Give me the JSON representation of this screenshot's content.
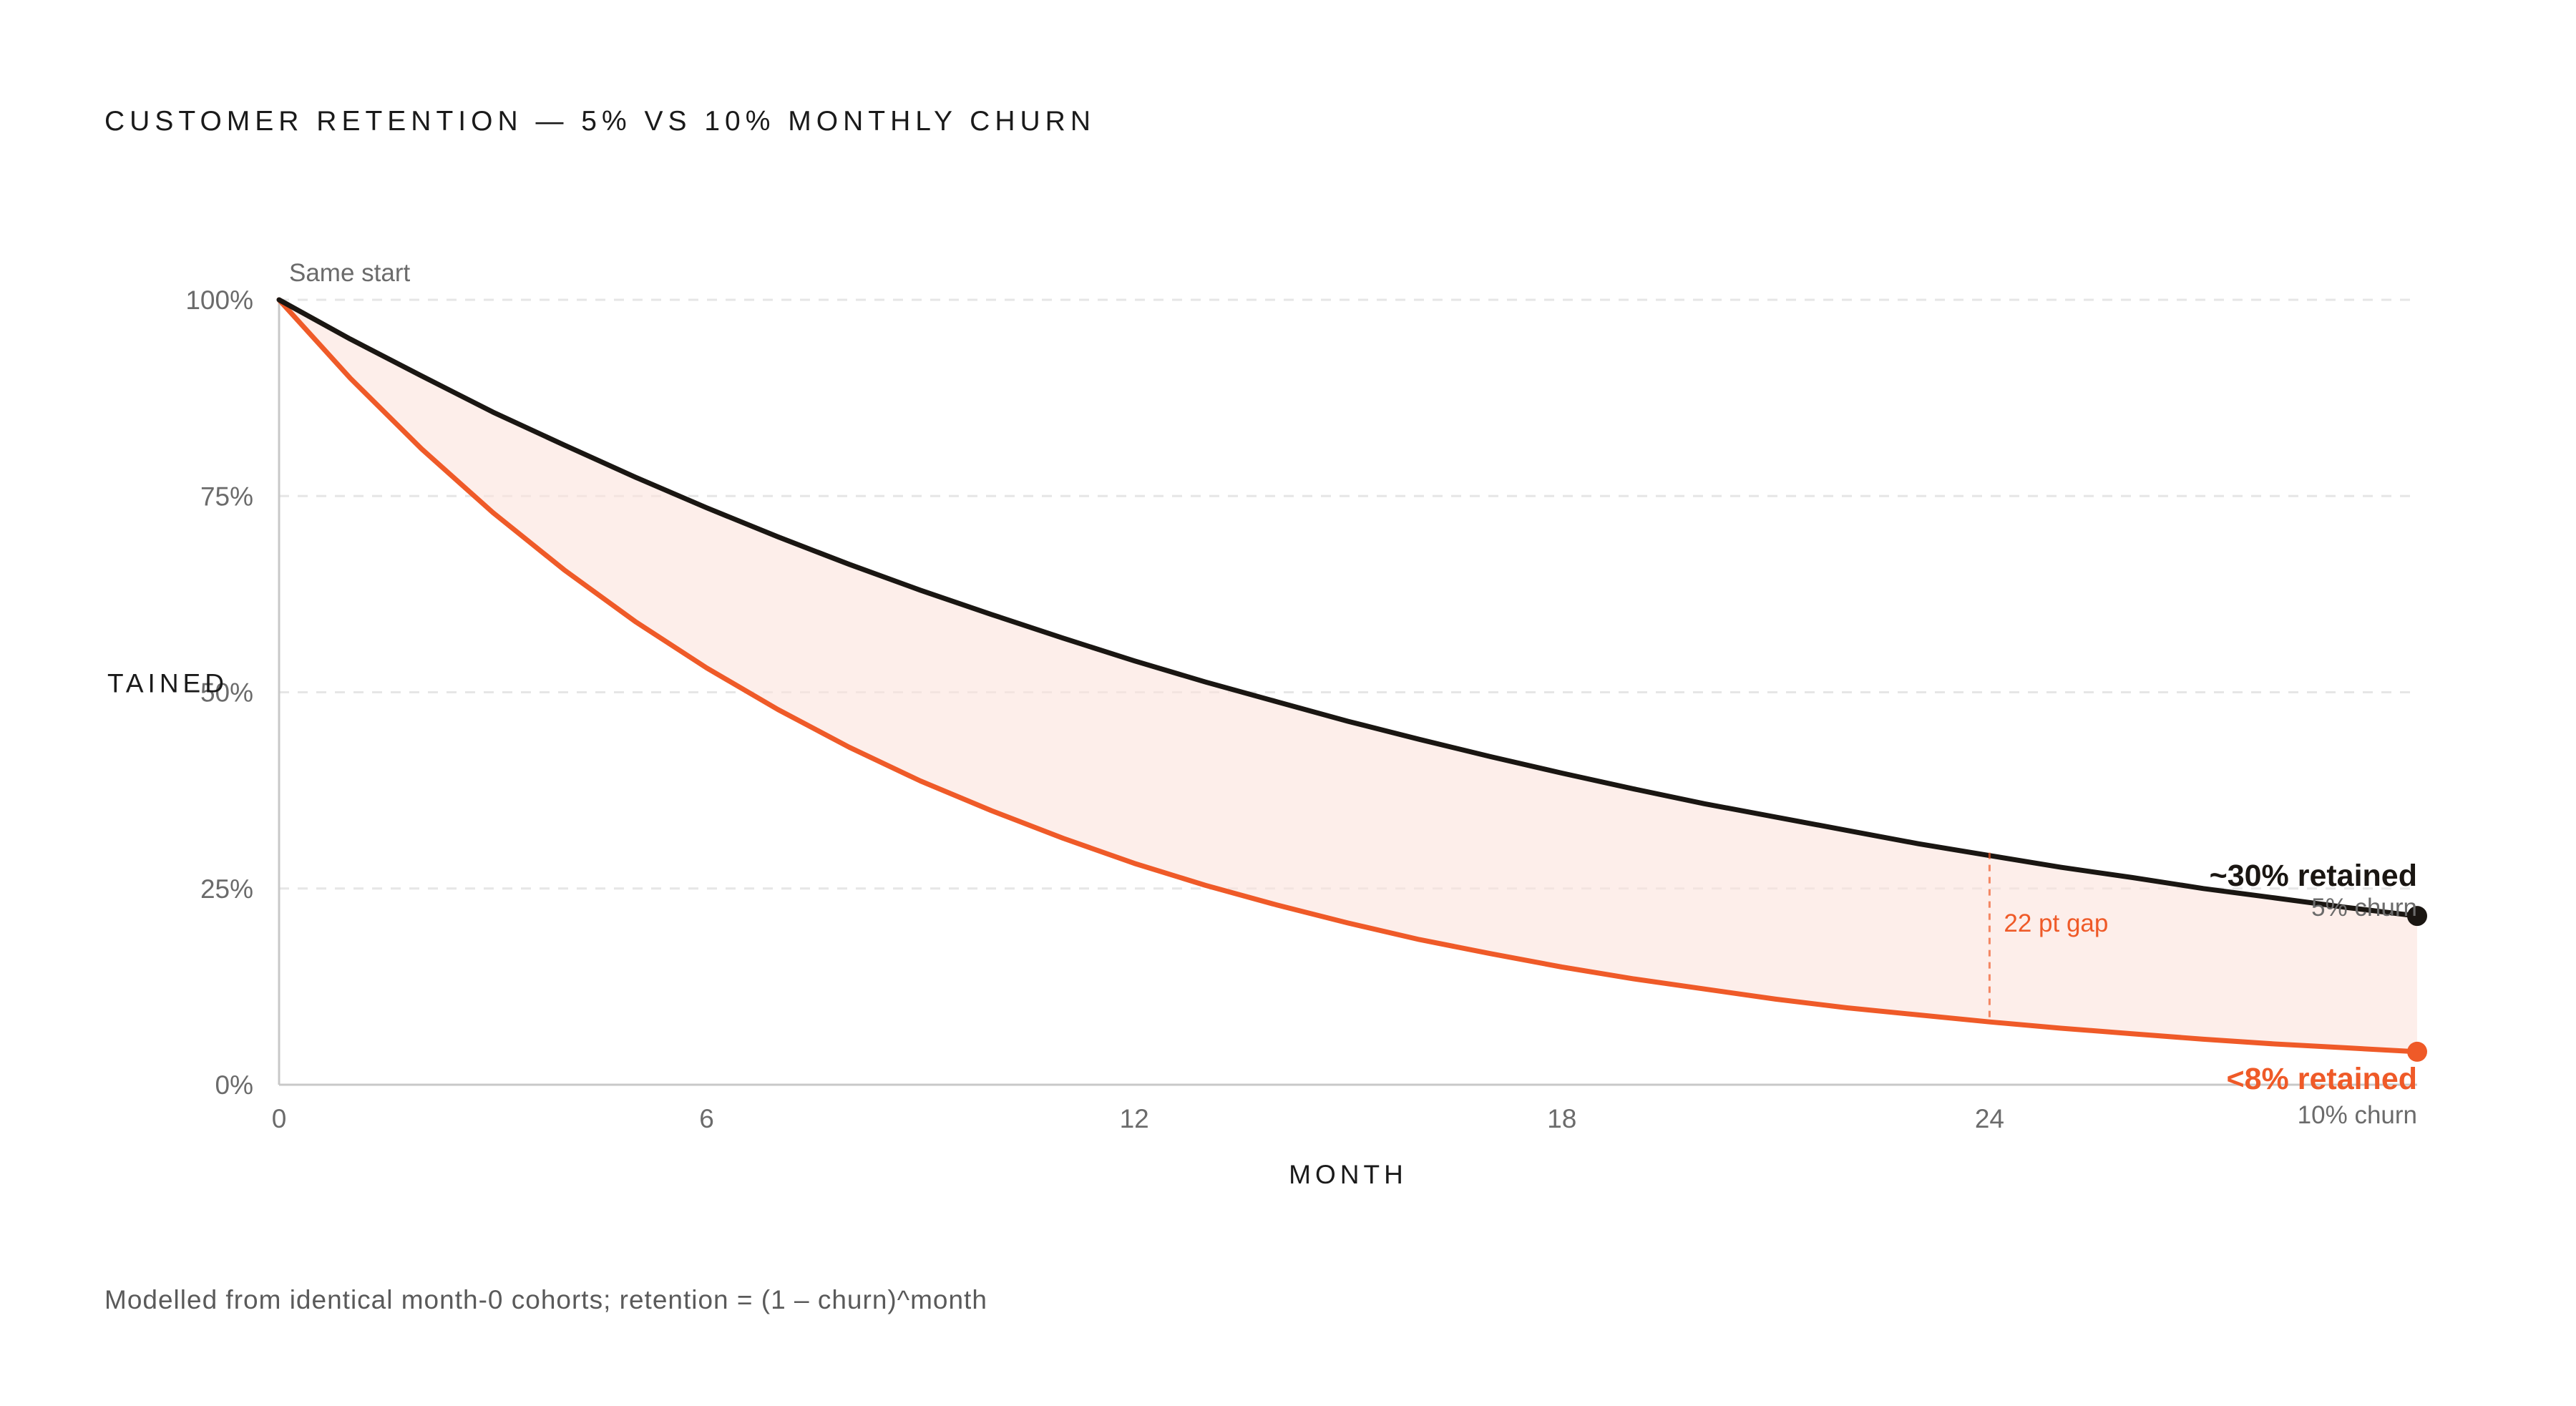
{
  "chart_data": {
    "type": "line",
    "title": "CUSTOMER RETENTION — 5% VS 10% MONTHLY CHURN",
    "xlabel": "MONTH",
    "ylabel": "TAINED",
    "xlim": [
      0,
      30
    ],
    "ylim": [
      0,
      100
    ],
    "x_ticks": [
      "0",
      "6",
      "12",
      "18",
      "24"
    ],
    "y_ticks": [
      "0%",
      "25%",
      "50%",
      "75%",
      "100%"
    ],
    "grid": "horizontal dashed",
    "x": [
      0,
      1,
      2,
      3,
      4,
      5,
      6,
      7,
      8,
      9,
      10,
      11,
      12,
      13,
      14,
      15,
      16,
      17,
      18,
      19,
      20,
      21,
      22,
      23,
      24,
      25,
      26,
      27,
      28,
      29,
      30
    ],
    "series": [
      {
        "name": "5% churn",
        "color": "#1a1612",
        "values": [
          100,
          95,
          90.3,
          85.7,
          81.5,
          77.4,
          73.5,
          69.8,
          66.3,
          63.0,
          59.9,
          56.9,
          54.0,
          51.3,
          48.8,
          46.3,
          44.0,
          41.8,
          39.7,
          37.7,
          35.8,
          34.1,
          32.4,
          30.7,
          29.2,
          27.7,
          26.4,
          25.0,
          23.8,
          22.6,
          21.5
        ],
        "end_label": "~30% retained",
        "end_sublabel": "5% churn"
      },
      {
        "name": "10% churn",
        "color": "#ef5a28",
        "values": [
          100,
          90,
          81,
          72.9,
          65.6,
          59.0,
          53.1,
          47.8,
          43.0,
          38.7,
          34.9,
          31.4,
          28.2,
          25.4,
          22.9,
          20.6,
          18.5,
          16.7,
          15.0,
          13.5,
          12.2,
          10.9,
          9.8,
          8.9,
          8.0,
          7.2,
          6.5,
          5.8,
          5.2,
          4.7,
          4.2
        ],
        "end_label": "<8% retained",
        "end_sublabel": "10% churn"
      }
    ],
    "annotations": [
      {
        "text": "Same start",
        "x": 0,
        "y": 100
      },
      {
        "text": "22 pt gap",
        "x": 24,
        "y_top": 29.2,
        "y_bottom": 8.0
      }
    ],
    "fill_between": {
      "color": "#fbe3dc"
    }
  },
  "footnote": "Modelled from identical month-0 cohorts; retention = (1 – churn)^month"
}
